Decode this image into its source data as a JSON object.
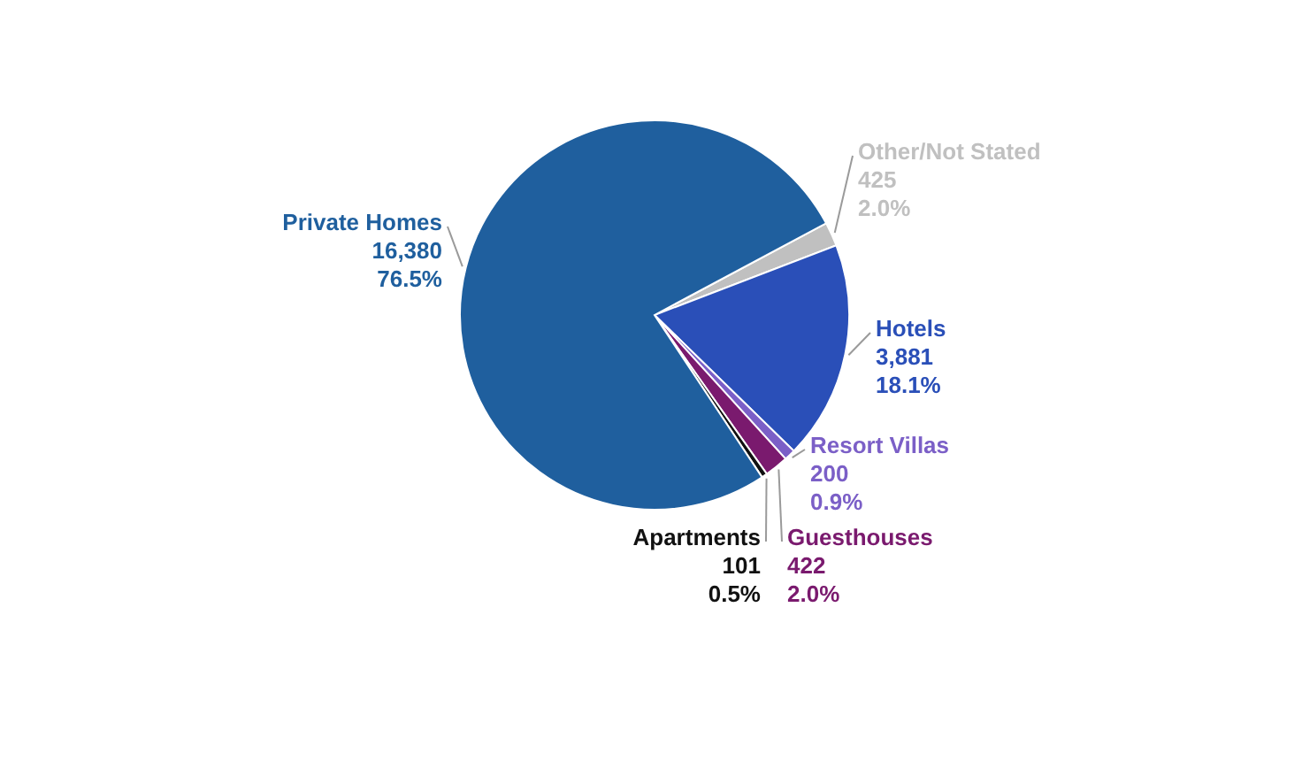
{
  "chart_data": {
    "type": "pie",
    "categories": [
      "Other/Not Stated",
      "Hotels",
      "Resort Villas",
      "Guesthouses",
      "Apartments",
      "Private Homes"
    ],
    "values": [
      425,
      3881,
      200,
      422,
      101,
      16380
    ],
    "colors": [
      "#c0c0c0",
      "#2a4fb8",
      "#7b5fc7",
      "#7a1a6e",
      "#111111",
      "#1f5f9e"
    ],
    "value_labels": [
      "425\n2.0%",
      "3,881\n18.1%",
      "200\n0.9%",
      "422\n2.0%",
      "101\n0.5%",
      "16,380\n76.5%"
    ]
  }
}
